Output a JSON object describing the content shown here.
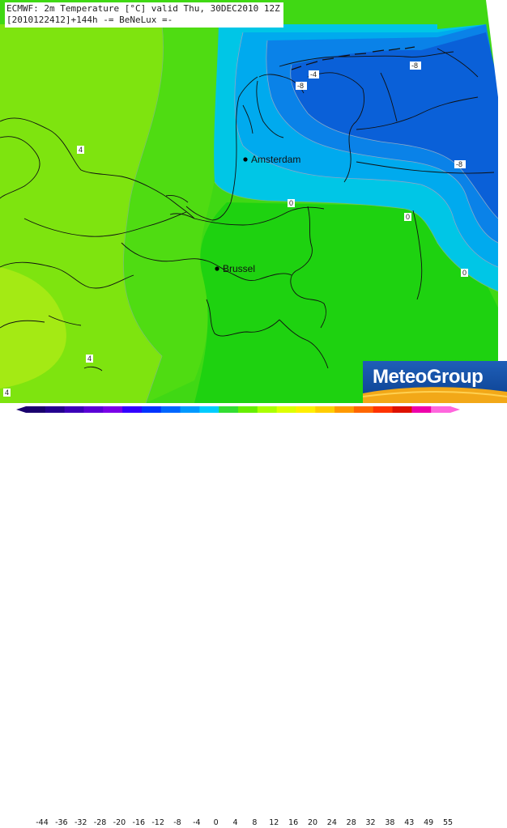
{
  "header": {
    "line1": "ECMWF: 2m Temperature [°C] valid Thu, 30DEC2010 12Z",
    "line2": "[2010122412]+144h -= BeNeLux =-"
  },
  "cities": [
    {
      "name": "Amsterdam"
    },
    {
      "name": "Brussel"
    }
  ],
  "isoline_labels": [
    "-4",
    "-8",
    "-8",
    "-8",
    "4",
    "0",
    "0",
    "0",
    "4",
    "4"
  ],
  "logo": {
    "text": "MeteoGroup"
  },
  "legend": {
    "ticks": [
      "-44",
      "-36",
      "-32",
      "-28",
      "-20",
      "-16",
      "-12",
      "-8",
      "-4",
      "0",
      "4",
      "8",
      "12",
      "16",
      "20",
      "24",
      "28",
      "32",
      "38",
      "43",
      "49",
      "55"
    ],
    "colors": [
      "#1a006e",
      "#24008f",
      "#3b00b8",
      "#5a00d6",
      "#7a00e8",
      "#3300ff",
      "#0033ff",
      "#0066ff",
      "#0099ff",
      "#00ccff",
      "#33dd33",
      "#66ee00",
      "#aaff00",
      "#ddff00",
      "#ffee00",
      "#ffcc00",
      "#ff9900",
      "#ff6600",
      "#ff3300",
      "#dd1100",
      "#ee00aa",
      "#ff66dd"
    ]
  },
  "palette": {
    "land_green_dark": "#11d211",
    "land_green_mid": "#3fd814",
    "land_green_light": "#7ee40f",
    "land_yellowgreen": "#a4ea14",
    "sea_cyan": "#00c6e6",
    "sea_light_blue": "#00a8ee",
    "sea_blue": "#0a7ee8",
    "sea_deep_blue": "#0a5ed8"
  }
}
